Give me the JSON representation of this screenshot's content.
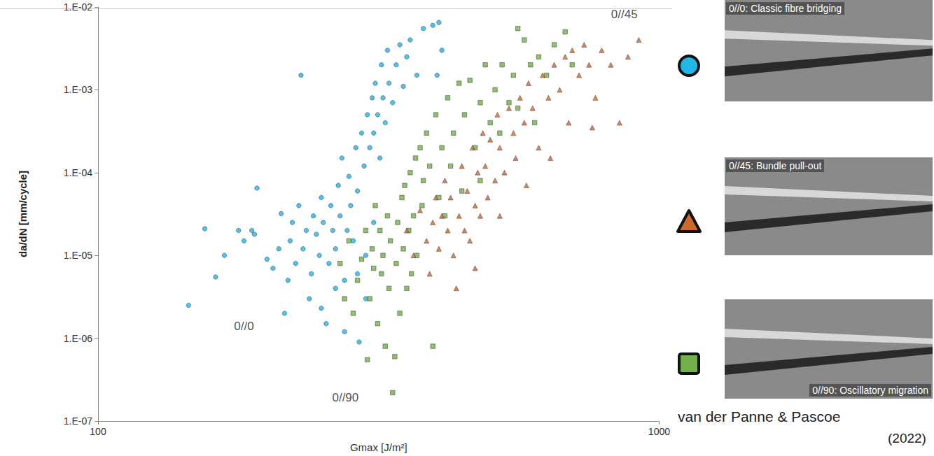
{
  "chart_data": {
    "type": "scatter",
    "x_label": "Gmax [J/m²]",
    "y_label": "da/dN [mm/cycle]",
    "log": true,
    "grid": false,
    "xlim": [
      100,
      1000
    ],
    "xticks": [
      100,
      1000
    ],
    "ylim": [
      1e-07,
      0.01
    ],
    "yticks": [
      {
        "value": 1e-07,
        "label": "1.E-07"
      },
      {
        "value": 1e-06,
        "label": "1.E-06"
      },
      {
        "value": 1e-05,
        "label": "1.E-05"
      },
      {
        "value": 0.0001,
        "label": "1.E-04"
      },
      {
        "value": 0.001,
        "label": "1.E-03"
      },
      {
        "value": 0.01,
        "label": "1.E-02"
      }
    ],
    "series": [
      {
        "name": "0//0",
        "color": "#22b5e8",
        "marker": "circle",
        "values": [
          [
            145,
            2.5e-06
          ],
          [
            155,
            2.1e-05
          ],
          [
            162,
            5.5e-06
          ],
          [
            168,
            1e-05
          ],
          [
            178,
            2e-05
          ],
          [
            182,
            1.5e-05
          ],
          [
            188,
            2e-05
          ],
          [
            190,
            1.8e-05
          ],
          [
            192,
            6.5e-05
          ],
          [
            200,
            9e-06
          ],
          [
            205,
            7e-06
          ],
          [
            210,
            1.2e-05
          ],
          [
            212,
            3.2e-05
          ],
          [
            215,
            2e-06
          ],
          [
            218,
            5e-06
          ],
          [
            220,
            1.5e-05
          ],
          [
            222,
            2.5e-05
          ],
          [
            225,
            8e-06
          ],
          [
            228,
            4e-05
          ],
          [
            230,
            0.0015
          ],
          [
            232,
            1.2e-05
          ],
          [
            235,
            2e-05
          ],
          [
            238,
            3e-06
          ],
          [
            240,
            6e-06
          ],
          [
            242,
            3e-05
          ],
          [
            245,
            1.8e-05
          ],
          [
            248,
            1e-05
          ],
          [
            250,
            5e-05
          ],
          [
            252,
            2.5e-05
          ],
          [
            255,
            1.5e-06
          ],
          [
            258,
            8e-06
          ],
          [
            260,
            4e-05
          ],
          [
            262,
            2e-05
          ],
          [
            265,
            1.2e-05
          ],
          [
            268,
            7e-05
          ],
          [
            270,
            3e-05
          ],
          [
            272,
            0.00015
          ],
          [
            275,
            5e-06
          ],
          [
            278,
            2e-05
          ],
          [
            280,
            9e-05
          ],
          [
            282,
            4e-05
          ],
          [
            285,
            1.5e-05
          ],
          [
            288,
            0.0002
          ],
          [
            290,
            6e-05
          ],
          [
            292,
            9e-07
          ],
          [
            295,
            0.0003
          ],
          [
            298,
            0.00012
          ],
          [
            300,
            1e-05
          ],
          [
            302,
            0.0005
          ],
          [
            305,
            0.0002
          ],
          [
            308,
            0.0008
          ],
          [
            310,
            0.0003
          ],
          [
            312,
            0.0012
          ],
          [
            315,
            0.0005
          ],
          [
            318,
            0.00015
          ],
          [
            320,
            0.002
          ],
          [
            322,
            0.0008
          ],
          [
            325,
            0.0004
          ],
          [
            328,
            0.003
          ],
          [
            330,
            0.0012
          ],
          [
            335,
            0.0007
          ],
          [
            340,
            0.002
          ],
          [
            345,
            0.0035
          ],
          [
            350,
            0.0011
          ],
          [
            355,
            0.0025
          ],
          [
            360,
            0.004
          ],
          [
            370,
            0.0015
          ],
          [
            380,
            0.0055
          ],
          [
            395,
            0.006
          ],
          [
            405,
            0.0065
          ],
          [
            410,
            0.003
          ],
          [
            402,
            0.0015
          ],
          [
            265,
            4e-06
          ],
          [
            275,
            1.2e-06
          ],
          [
            250,
            2.3e-06
          ],
          [
            300,
            3e-06
          ],
          [
            310,
            2.5e-05
          ],
          [
            290,
            6e-06
          ]
        ]
      },
      {
        "name": "0//90",
        "color": "#72b04a",
        "marker": "square",
        "values": [
          [
            270,
            8e-06
          ],
          [
            275,
            3e-06
          ],
          [
            280,
            1.5e-05
          ],
          [
            285,
            2e-06
          ],
          [
            290,
            5e-06
          ],
          [
            295,
            9e-06
          ],
          [
            300,
            2e-05
          ],
          [
            302,
            5.5e-07
          ],
          [
            305,
            3e-06
          ],
          [
            308,
            1.2e-05
          ],
          [
            310,
            7e-06
          ],
          [
            312,
            4e-05
          ],
          [
            315,
            1.5e-06
          ],
          [
            318,
            2e-05
          ],
          [
            320,
            6e-06
          ],
          [
            322,
            1e-05
          ],
          [
            325,
            8e-07
          ],
          [
            328,
            3e-05
          ],
          [
            330,
            4e-06
          ],
          [
            332,
            1.5e-05
          ],
          [
            335,
            2.2e-07
          ],
          [
            338,
            6e-07
          ],
          [
            340,
            8e-06
          ],
          [
            342,
            2.5e-05
          ],
          [
            345,
            2e-06
          ],
          [
            348,
            5e-05
          ],
          [
            350,
            1.2e-05
          ],
          [
            352,
            7e-05
          ],
          [
            355,
            4e-06
          ],
          [
            358,
            2e-05
          ],
          [
            360,
            0.0001
          ],
          [
            362,
            6e-06
          ],
          [
            365,
            3e-05
          ],
          [
            368,
            0.00015
          ],
          [
            370,
            1e-05
          ],
          [
            375,
            0.0002
          ],
          [
            378,
            4e-05
          ],
          [
            380,
            8e-05
          ],
          [
            385,
            0.0003
          ],
          [
            390,
            0.00012
          ],
          [
            395,
            8e-07
          ],
          [
            400,
            0.0005
          ],
          [
            405,
            5e-05
          ],
          [
            410,
            0.0002
          ],
          [
            415,
            3e-05
          ],
          [
            420,
            0.0008
          ],
          [
            425,
            0.00012
          ],
          [
            430,
            0.0003
          ],
          [
            440,
            0.0012
          ],
          [
            445,
            6e-05
          ],
          [
            450,
            0.0005
          ],
          [
            460,
            0.0013
          ],
          [
            470,
            0.0002
          ],
          [
            480,
            0.0007
          ],
          [
            490,
            0.002
          ],
          [
            500,
            0.0004
          ],
          [
            510,
            0.001
          ],
          [
            525,
            0.002
          ],
          [
            540,
            0.0007
          ],
          [
            550,
            0.0015
          ],
          [
            560,
            0.0055
          ],
          [
            575,
            0.004
          ],
          [
            590,
            0.002
          ],
          [
            610,
            0.0025
          ],
          [
            630,
            0.0015
          ],
          [
            650,
            0.0035
          ],
          [
            680,
            0.005
          ],
          [
            700,
            0.002
          ],
          [
            600,
            0.0004
          ],
          [
            560,
            0.0006
          ],
          [
            520,
            0.0003
          ],
          [
            480,
            8e-05
          ]
        ]
      },
      {
        "name": "0//45",
        "color": "#cd6a2c",
        "marker": "triangle",
        "values": [
          [
            355,
            2e-05
          ],
          [
            365,
            1e-05
          ],
          [
            375,
            3.5e-05
          ],
          [
            385,
            1.5e-05
          ],
          [
            390,
            6e-06
          ],
          [
            395,
            2.5e-05
          ],
          [
            400,
            5e-05
          ],
          [
            405,
            1.2e-05
          ],
          [
            410,
            3e-05
          ],
          [
            415,
            8e-05
          ],
          [
            420,
            2e-05
          ],
          [
            425,
            5e-05
          ],
          [
            430,
            1e-05
          ],
          [
            435,
            4e-06
          ],
          [
            440,
            3e-05
          ],
          [
            445,
            0.00012
          ],
          [
            450,
            2e-05
          ],
          [
            455,
            6e-05
          ],
          [
            460,
            1.5e-05
          ],
          [
            465,
            0.0002
          ],
          [
            470,
            4e-05
          ],
          [
            475,
            0.0001
          ],
          [
            480,
            3e-05
          ],
          [
            485,
            0.0003
          ],
          [
            490,
            0.00012
          ],
          [
            495,
            5e-05
          ],
          [
            500,
            0.00025
          ],
          [
            510,
            8e-05
          ],
          [
            515,
            0.0005
          ],
          [
            520,
            0.0002
          ],
          [
            530,
            0.0001
          ],
          [
            540,
            0.0006
          ],
          [
            550,
            0.0003
          ],
          [
            555,
            0.00015
          ],
          [
            565,
            0.0008
          ],
          [
            575,
            0.0004
          ],
          [
            585,
            0.0012
          ],
          [
            595,
            0.0006
          ],
          [
            610,
            0.0002
          ],
          [
            620,
            0.0015
          ],
          [
            635,
            0.0008
          ],
          [
            650,
            0.002
          ],
          [
            665,
            0.001
          ],
          [
            680,
            0.0025
          ],
          [
            690,
            0.0004
          ],
          [
            700,
            0.003
          ],
          [
            720,
            0.0015
          ],
          [
            735,
            0.0035
          ],
          [
            750,
            0.002
          ],
          [
            770,
            0.0008
          ],
          [
            790,
            0.003
          ],
          [
            820,
            0.002
          ],
          [
            850,
            0.0004
          ],
          [
            880,
            0.0025
          ],
          [
            920,
            0.004
          ],
          [
            760,
            0.00035
          ],
          [
            640,
            0.00015
          ],
          [
            580,
            7e-05
          ],
          [
            470,
            7e-06
          ],
          [
            520,
            3e-05
          ]
        ]
      }
    ],
    "annotations": [
      {
        "text": "0//0",
        "x": 182,
        "y": 1.4e-06
      },
      {
        "text": "0//90",
        "x": 276,
        "y": 1.9e-07
      },
      {
        "text": "0//45",
        "x": 867,
        "y": 0.0082
      }
    ],
    "panels": [
      {
        "series": "0//0",
        "caption": "0//0: Classic fibre bridging"
      },
      {
        "series": "0//45",
        "caption": "0//45: Bundle pull-out"
      },
      {
        "series": "0//90",
        "caption": "0//90: Oscillatory migration"
      }
    ],
    "citation": {
      "authors": "van der Panne & Pascoe",
      "year": "(2022)"
    }
  }
}
